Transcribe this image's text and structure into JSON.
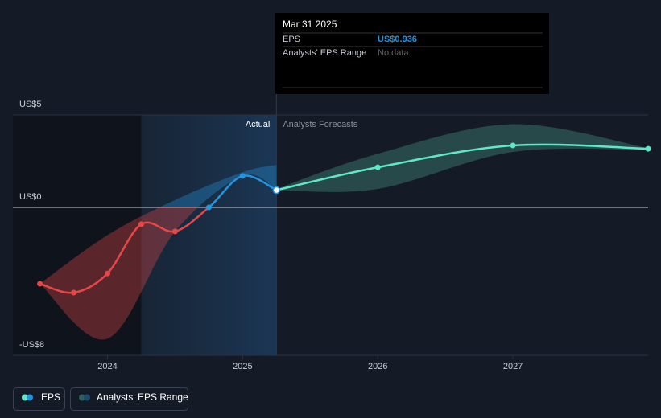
{
  "chart_data": {
    "type": "line",
    "series": [
      {
        "name": "EPS",
        "color": "#2394df",
        "negative_color": "#e64848",
        "x": [
          2023.5,
          2023.75,
          2024.0,
          2024.25,
          2024.5,
          2024.75,
          2025.0,
          2025.25
        ],
        "values": [
          -4.13,
          -4.61,
          -3.57,
          -0.91,
          -1.3,
          0.0,
          1.7,
          0.936
        ]
      }
    ],
    "forecast": {
      "color": "#5ee8c8",
      "x": [
        2025.25,
        2026.0,
        2027.0,
        2028.0
      ],
      "values": [
        0.936,
        2.17,
        3.35,
        3.17
      ]
    },
    "range_name": "Analysts' EPS Range",
    "ranges": [
      {
        "x": [
          2023.5,
          2024.0,
          2024.5,
          2025.0,
          2025.25
        ],
        "high": [
          -4.13,
          -1.5,
          0.4,
          1.9,
          2.3
        ],
        "low": [
          -4.13,
          -7.1,
          -1.3,
          1.7,
          0.936
        ]
      },
      {
        "x": [
          2025.25,
          2026.0,
          2027.0,
          2028.0
        ],
        "high": [
          1.0,
          2.9,
          4.5,
          3.2
        ],
        "low": [
          0.936,
          1.0,
          3.0,
          3.1
        ],
        "color": "#2f5d58"
      }
    ],
    "highlight_range": [
      2024.25,
      2025.25
    ],
    "actual_label": "Actual",
    "forecast_label": "Analysts Forecasts",
    "xlim": [
      2023.3,
      2028.0
    ],
    "xticks": [
      2024,
      2025,
      2026,
      2027
    ],
    "ylim": [
      -8,
      5
    ],
    "yticks": [
      {
        "value": 5,
        "label": "US$5"
      },
      {
        "value": 0,
        "label": "US$0"
      },
      {
        "value": -8,
        "label": "-US$8"
      }
    ],
    "grid": true,
    "tooltip": {
      "date": "Mar 31 2025",
      "rows": [
        {
          "label": "EPS",
          "value": "US$0.936"
        },
        {
          "label": "Analysts' EPS Range",
          "value": "No data"
        }
      ]
    }
  }
}
